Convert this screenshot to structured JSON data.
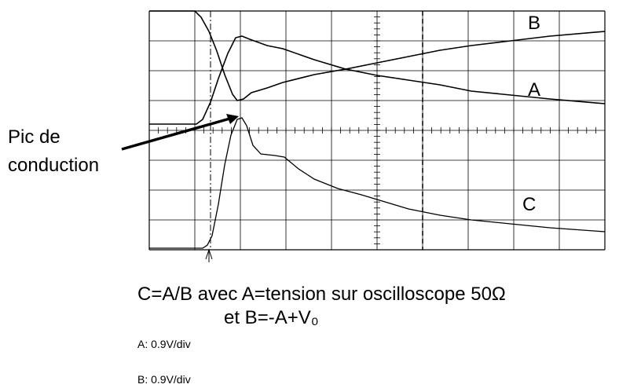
{
  "traces": {
    "b_label": "B",
    "a_label": "A",
    "c_label": "C"
  },
  "annotation": {
    "line1": "Pic de",
    "line2": "conduction"
  },
  "caption": {
    "line1": "C=A/B avec A=tension sur oscilloscope 50Ω",
    "line2": "et B=-A+V₀"
  },
  "scales": {
    "a": "A: 0.9V/div",
    "b": "B: 0.9V/div"
  }
}
